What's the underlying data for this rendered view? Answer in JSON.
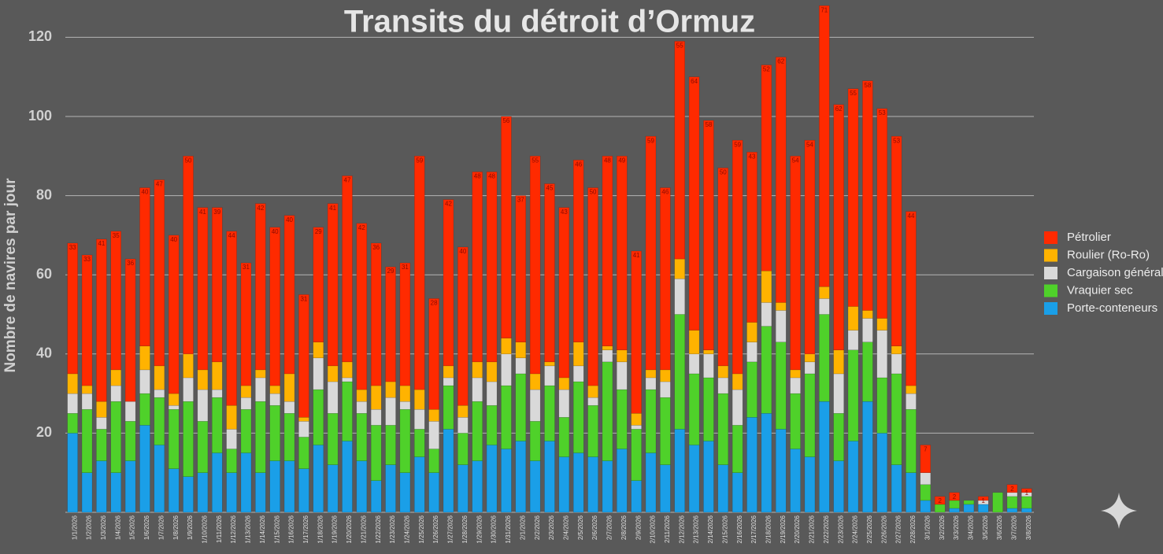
{
  "chart_data": {
    "type": "stacked-bar",
    "title": "Transits du détroit d’Ormuz",
    "y_label": "Nombre de navires par jour",
    "categories": [
      "1/1/2026",
      "1/2/2026",
      "1/3/2026",
      "1/4/2026",
      "1/5/2026",
      "1/6/2026",
      "1/7/2026",
      "1/8/2026",
      "1/9/2026",
      "1/10/2026",
      "1/11/2026",
      "1/12/2026",
      "1/13/2026",
      "1/14/2026",
      "1/15/2026",
      "1/16/2026",
      "1/17/2026",
      "1/18/2026",
      "1/19/2026",
      "1/20/2026",
      "1/21/2026",
      "1/22/2026",
      "1/23/2026",
      "1/24/2026",
      "1/25/2026",
      "1/26/2026",
      "1/27/2026",
      "1/28/2026",
      "1/29/2026",
      "1/30/2026",
      "1/31/2026",
      "2/1/2026",
      "2/2/2026",
      "2/3/2026",
      "2/4/2026",
      "2/5/2026",
      "2/6/2026",
      "2/7/2026",
      "2/8/2026",
      "2/9/2026",
      "2/10/2026",
      "2/11/2026",
      "2/12/2026",
      "2/13/2026",
      "2/14/2026",
      "2/15/2026",
      "2/16/2026",
      "2/17/2026",
      "2/18/2026",
      "2/19/2026",
      "2/20/2026",
      "2/21/2026",
      "2/22/2026",
      "2/23/2026",
      "2/24/2026",
      "2/25/2026",
      "2/26/2026",
      "2/27/2026",
      "2/28/2026",
      "3/1/2026",
      "3/2/2026",
      "3/3/2026",
      "3/4/2026",
      "3/5/2026",
      "3/6/2026",
      "3/7/2026",
      "3/8/2026"
    ],
    "series": [
      {
        "name": "Porte-conteneurs",
        "color": "#1a9fe8",
        "values": [
          20,
          10,
          13,
          10,
          13,
          22,
          17,
          11,
          9,
          10,
          15,
          10,
          15,
          10,
          13,
          13,
          11,
          17,
          12,
          18,
          13,
          8,
          12,
          10,
          14,
          10,
          21,
          12,
          13,
          17,
          16,
          18,
          13,
          18,
          14,
          15,
          14,
          13,
          16,
          8,
          15,
          12,
          21,
          17,
          18,
          12,
          10,
          24,
          25,
          21,
          16,
          14,
          28,
          13,
          18,
          28,
          20,
          12,
          10,
          3,
          0,
          1,
          2,
          2,
          0,
          1,
          1
        ]
      },
      {
        "name": "Vraquier sec",
        "color": "#4fd12a",
        "values": [
          5,
          16,
          8,
          18,
          10,
          8,
          12,
          15,
          19,
          13,
          14,
          6,
          11,
          18,
          14,
          12,
          8,
          14,
          13,
          15,
          12,
          14,
          10,
          16,
          7,
          6,
          11,
          8,
          15,
          10,
          16,
          17,
          10,
          14,
          10,
          18,
          13,
          25,
          15,
          13,
          16,
          17,
          29,
          18,
          16,
          18,
          12,
          14,
          22,
          22,
          14,
          21,
          22,
          12,
          23,
          15,
          14,
          23,
          16,
          4,
          2,
          2,
          1,
          0,
          5,
          3,
          3
        ]
      },
      {
        "name": "Cargaison général",
        "color": "#d9d9d9",
        "values": [
          5,
          4,
          3,
          4,
          5,
          6,
          2,
          1,
          6,
          8,
          2,
          5,
          3,
          6,
          3,
          3,
          4,
          8,
          8,
          1,
          3,
          4,
          7,
          2,
          5,
          7,
          2,
          4,
          6,
          6,
          8,
          4,
          8,
          5,
          7,
          4,
          2,
          3,
          7,
          1,
          3,
          4,
          9,
          5,
          6,
          4,
          9,
          5,
          6,
          8,
          4,
          3,
          4,
          10,
          5,
          6,
          12,
          5,
          4,
          3,
          0,
          0,
          0,
          1,
          0,
          1,
          1
        ]
      },
      {
        "name": "Roulier (Ro-Ro)",
        "color": "#ffb300",
        "values": [
          5,
          2,
          4,
          4,
          0,
          6,
          6,
          3,
          6,
          5,
          7,
          6,
          3,
          2,
          2,
          7,
          1,
          4,
          4,
          4,
          3,
          6,
          4,
          4,
          5,
          3,
          3,
          3,
          4,
          5,
          4,
          4,
          4,
          1,
          3,
          6,
          3,
          1,
          3,
          3,
          2,
          3,
          5,
          6,
          1,
          3,
          4,
          5,
          8,
          2,
          2,
          2,
          3,
          6,
          6,
          2,
          3,
          2,
          2,
          0,
          0,
          0,
          0,
          0,
          0,
          0,
          0
        ]
      },
      {
        "name": "Pétrolier",
        "color": "#ff2a00",
        "values": [
          33,
          33,
          41,
          35,
          36,
          40,
          47,
          40,
          50,
          41,
          39,
          44,
          31,
          42,
          40,
          40,
          31,
          29,
          41,
          47,
          42,
          36,
          29,
          31,
          59,
          28,
          42,
          40,
          48,
          48,
          56,
          37,
          55,
          45,
          43,
          46,
          50,
          48,
          49,
          41,
          59,
          46,
          55,
          64,
          58,
          50,
          59,
          43,
          52,
          62,
          54,
          54,
          71,
          62,
          55,
          58,
          53,
          53,
          44,
          7,
          2,
          2,
          0,
          1,
          0,
          2,
          1
        ]
      }
    ],
    "ylim": [
      0,
      130
    ],
    "yticks": [
      20,
      40,
      60,
      80,
      100,
      120
    ],
    "grid": true,
    "legend": "right"
  }
}
